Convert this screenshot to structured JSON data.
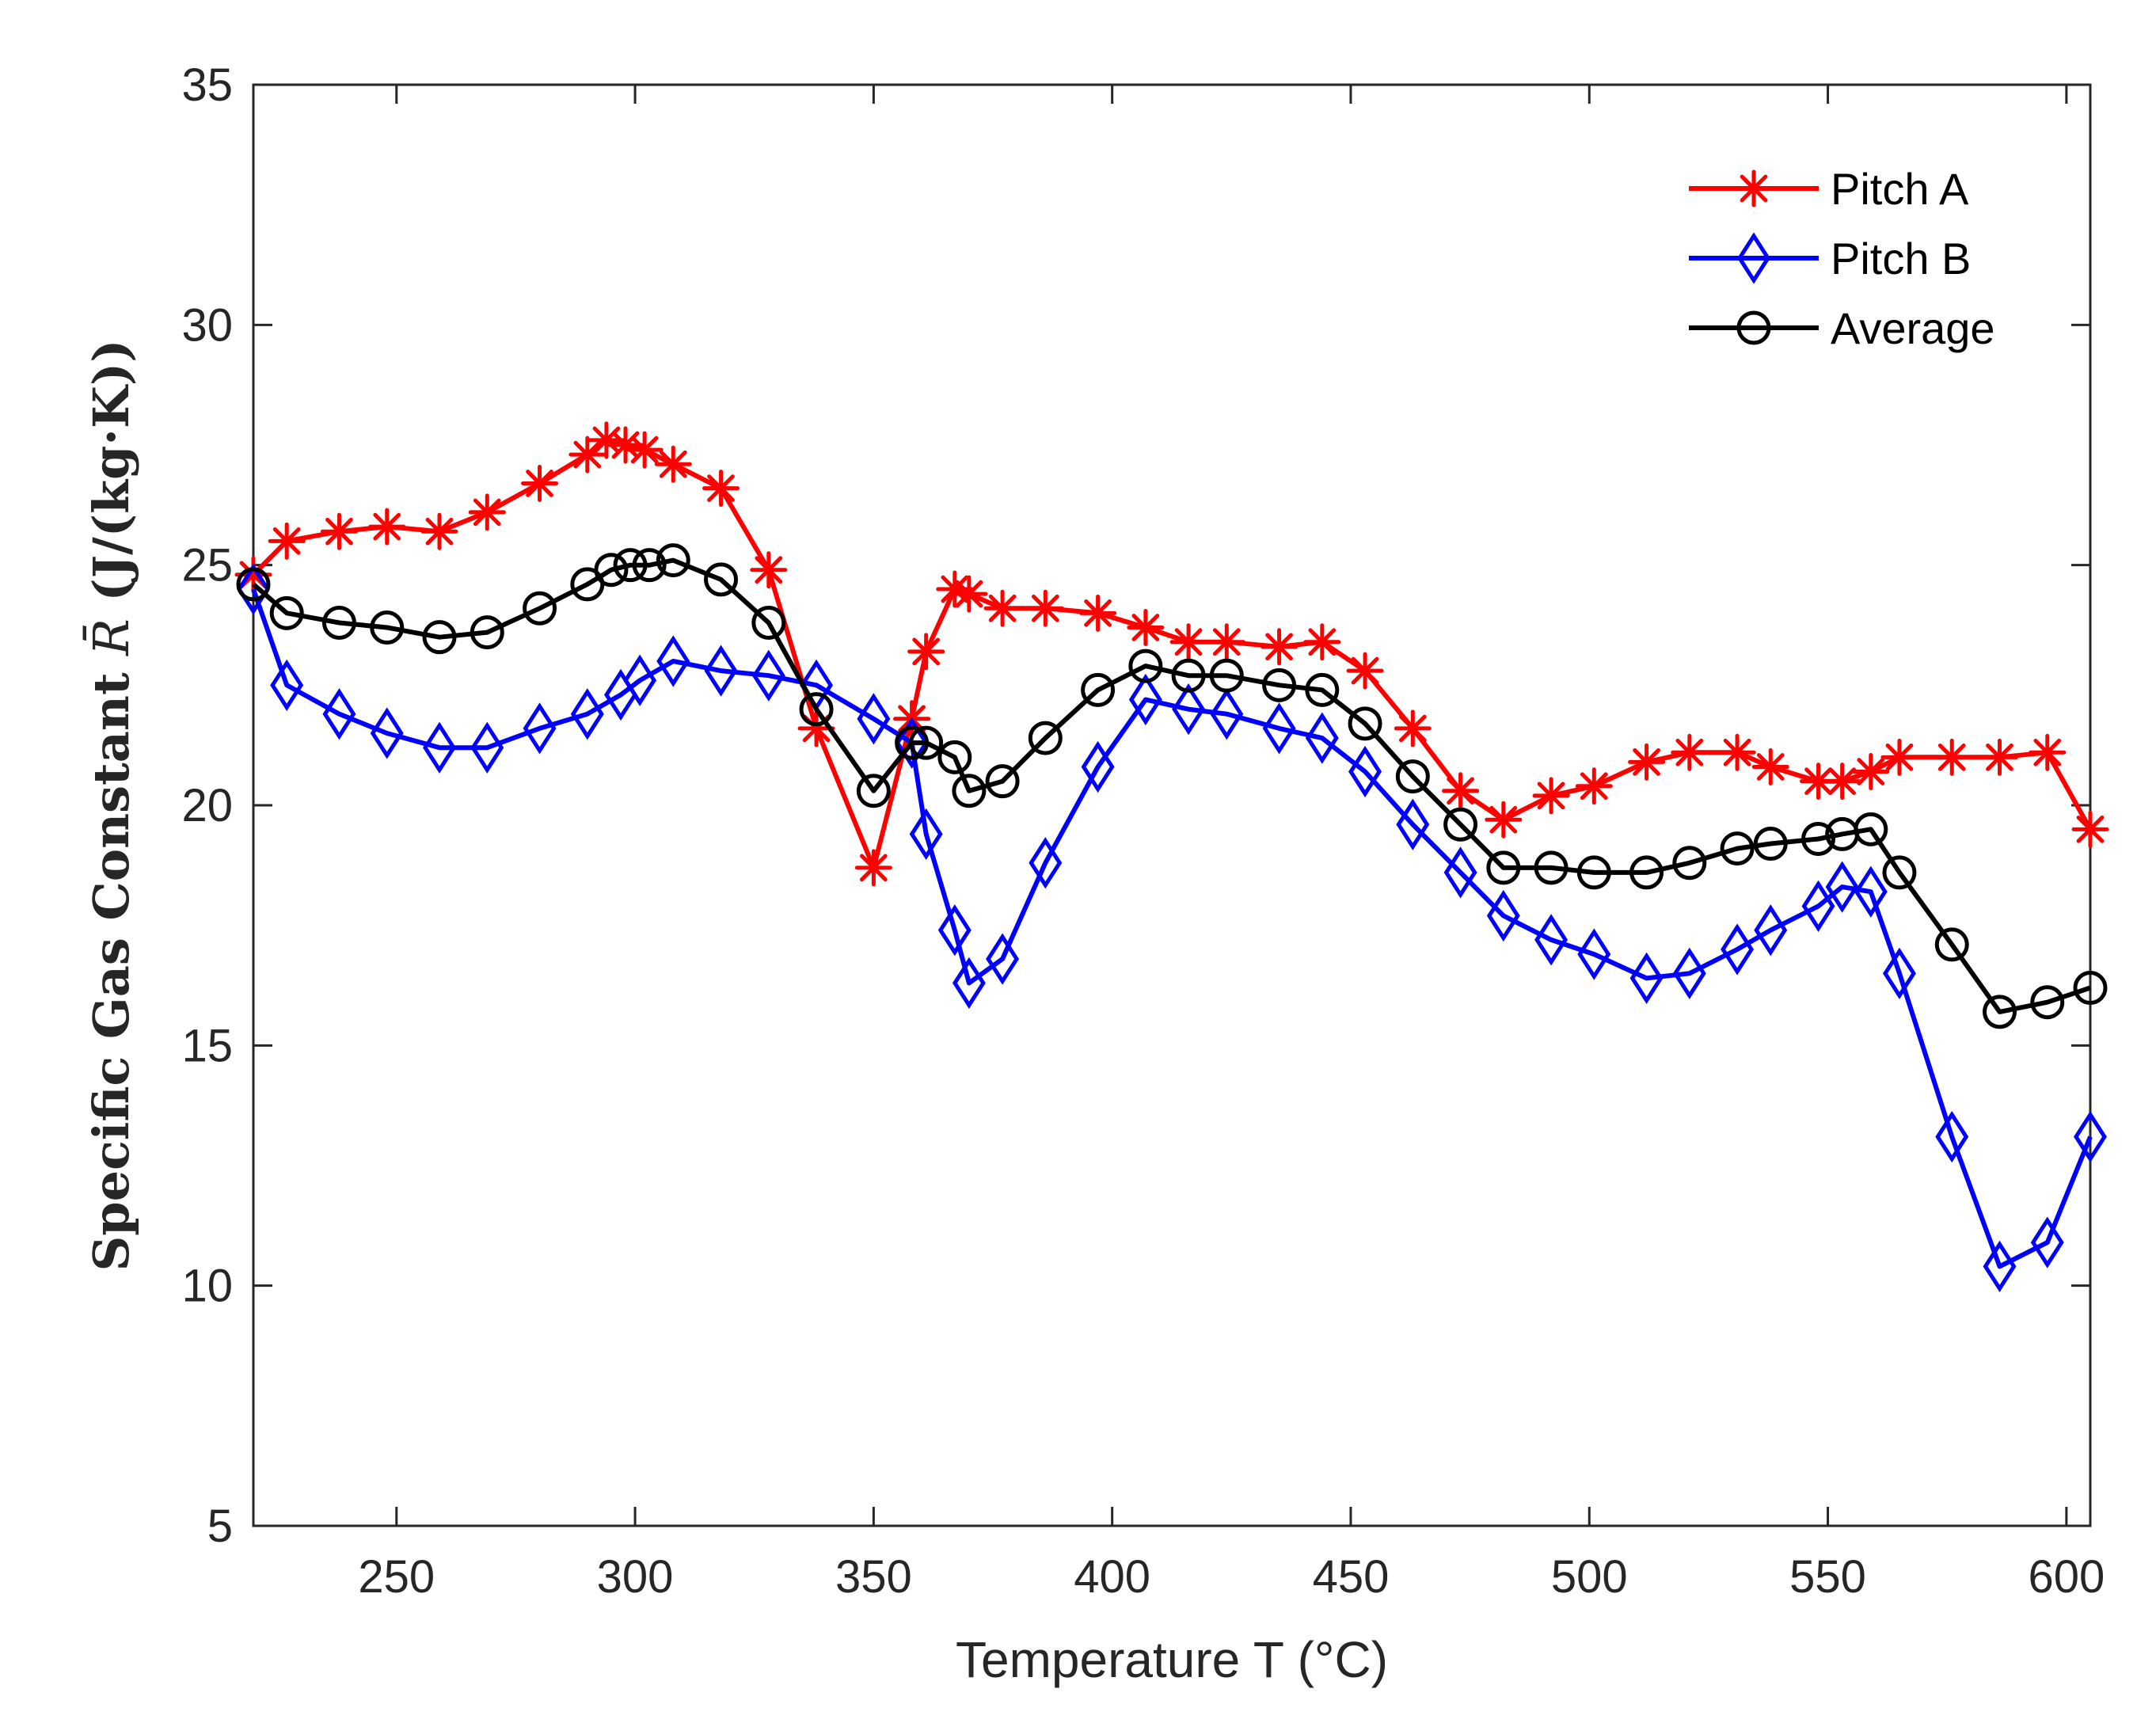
{
  "chart_data": {
    "type": "line",
    "title": "",
    "xlabel": "Temperature T (°C)",
    "ylabel_text": "Specific Gas Constant ",
    "ylabel_symbol": "R̄",
    "ylabel_units": " (J/(kg·K))",
    "xlim": [
      220,
      605
    ],
    "ylim": [
      5,
      35
    ],
    "xticks": [
      250,
      300,
      350,
      400,
      450,
      500,
      550,
      600
    ],
    "yticks": [
      5,
      10,
      15,
      20,
      25,
      30,
      35
    ],
    "grid": false,
    "legend_position": "top-right",
    "series": [
      {
        "name": "Pitch A",
        "color": "#ff0000",
        "marker": "asterisk",
        "x": [
          220,
          227,
          238,
          248,
          259,
          269,
          280,
          290,
          294,
          298,
          302,
          308,
          318,
          328,
          338,
          350,
          358,
          361,
          367,
          370,
          377,
          386,
          397,
          407,
          416,
          424,
          435,
          444,
          453,
          463,
          473,
          482,
          492,
          501,
          512,
          521,
          531,
          538,
          548,
          553,
          559,
          565,
          576,
          586,
          596,
          605
        ],
        "y": [
          24.8,
          25.5,
          25.7,
          25.8,
          25.7,
          26.1,
          26.7,
          27.3,
          27.6,
          27.5,
          27.4,
          27.1,
          26.6,
          24.9,
          21.6,
          18.7,
          21.8,
          23.2,
          24.5,
          24.4,
          24.1,
          24.1,
          24.0,
          23.7,
          23.4,
          23.4,
          23.3,
          23.4,
          22.8,
          21.6,
          20.3,
          19.7,
          20.2,
          20.4,
          20.9,
          21.1,
          21.1,
          20.8,
          20.5,
          20.5,
          20.7,
          21.0,
          21.0,
          21.0,
          21.1,
          19.5
        ]
      },
      {
        "name": "Pitch B",
        "color": "#0000ff",
        "marker": "diamond",
        "x": [
          220,
          227,
          238,
          248,
          259,
          269,
          280,
          290,
          297,
          301,
          308,
          318,
          328,
          338,
          350,
          358,
          361,
          367,
          370,
          377,
          386,
          397,
          407,
          416,
          424,
          435,
          444,
          453,
          463,
          473,
          482,
          492,
          501,
          512,
          521,
          531,
          538,
          548,
          553,
          559,
          565,
          576,
          586,
          596,
          605
        ],
        "y": [
          24.5,
          22.5,
          21.9,
          21.5,
          21.2,
          21.2,
          21.6,
          21.9,
          22.3,
          22.6,
          23.0,
          22.8,
          22.7,
          22.5,
          21.8,
          21.3,
          19.4,
          17.4,
          16.3,
          16.8,
          18.8,
          20.8,
          22.2,
          22.0,
          21.9,
          21.6,
          21.4,
          20.7,
          19.6,
          18.6,
          17.7,
          17.2,
          16.9,
          16.4,
          16.5,
          17.0,
          17.4,
          17.9,
          18.3,
          18.2,
          16.5,
          13.1,
          10.4,
          10.9,
          13.1
        ]
      },
      {
        "name": "Average",
        "color": "#000000",
        "marker": "circle",
        "x": [
          220,
          227,
          238,
          248,
          259,
          269,
          280,
          290,
          295,
          299,
          303,
          308,
          318,
          328,
          338,
          350,
          358,
          361,
          367,
          370,
          377,
          386,
          397,
          407,
          416,
          424,
          435,
          444,
          453,
          463,
          473,
          482,
          492,
          501,
          512,
          521,
          531,
          538,
          548,
          553,
          559,
          565,
          576,
          586,
          596,
          605
        ],
        "y": [
          24.6,
          24.0,
          23.8,
          23.7,
          23.5,
          23.6,
          24.1,
          24.6,
          24.9,
          25.0,
          25.0,
          25.1,
          24.7,
          23.8,
          22.0,
          20.3,
          21.3,
          21.3,
          21.0,
          20.3,
          20.5,
          21.4,
          22.4,
          22.9,
          22.7,
          22.7,
          22.5,
          22.4,
          21.7,
          20.6,
          19.6,
          18.7,
          18.7,
          18.6,
          18.6,
          18.8,
          19.1,
          19.2,
          19.3,
          19.4,
          19.5,
          18.6,
          17.1,
          15.7,
          15.9,
          16.2
        ]
      }
    ]
  }
}
